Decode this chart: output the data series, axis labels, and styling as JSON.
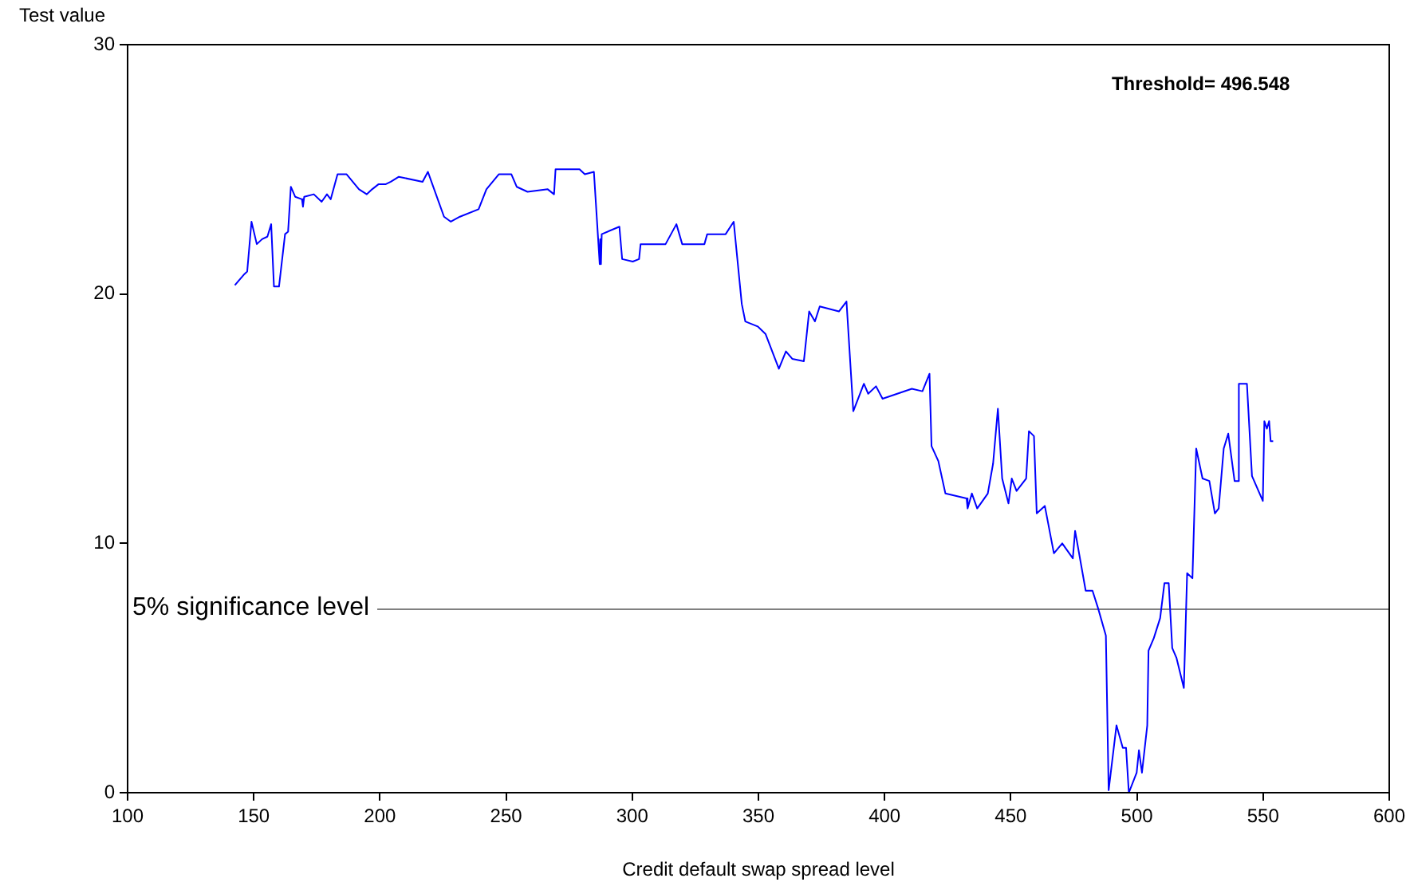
{
  "chart_data": {
    "type": "line",
    "xlabel": "Credit default swap spread level",
    "ylabel": "Test value",
    "xlim": [
      100,
      600
    ],
    "xticks": [
      100,
      150,
      200,
      250,
      300,
      350,
      400,
      450,
      500,
      550,
      600
    ],
    "ylim": [
      0,
      30
    ],
    "yticks": [
      0,
      10,
      20,
      30
    ],
    "grid": false,
    "legend": false,
    "marker": "none",
    "line_style": "solid",
    "annotations": [
      "Threshold= 496.548"
    ],
    "ref_lines": [
      {
        "axis": "y",
        "value": 7.36,
        "label": "5% significance level",
        "color": "#808080"
      }
    ],
    "series": [
      {
        "color": "#0000ff",
        "x": [
          142.5,
          146.3,
          147.4,
          149.1,
          151.2,
          153.3,
          155.4,
          156.9,
          158,
          160,
          162.4,
          163.6,
          164.7,
          166.4,
          169.1,
          169.5,
          170,
          173.8,
          176.9,
          179,
          180.5,
          183.2,
          186.8,
          191.7,
          194.8,
          196.9,
          199.4,
          202.2,
          204.3,
          207.5,
          216.9,
          219,
          225.4,
          228.1,
          231.7,
          239.1,
          242.2,
          247.1,
          252.1,
          254.2,
          258.5,
          266.5,
          269,
          269.6,
          279.1,
          281.2,
          284.8,
          287.1,
          287.3,
          287.6,
          287.9,
          294.9,
          296,
          300.2,
          302.7,
          303.3,
          309.7,
          313.2,
          317.5,
          319.8,
          328.6,
          329.7,
          337,
          340.2,
          343.4,
          344.8,
          349.7,
          352.8,
          358.1,
          360.9,
          363.4,
          368,
          370.1,
          372.4,
          374.3,
          381.9,
          384.9,
          387.6,
          391.8,
          393.5,
          396.6,
          399.2,
          410.8,
          415,
          417.8,
          418.6,
          421.3,
          424.1,
          432.5,
          432.9,
          434.6,
          436.7,
          440.9,
          443,
          444.9,
          446.6,
          449.1,
          450.4,
          452.3,
          456.1,
          457.2,
          459.2,
          460.3,
          463.5,
          467.1,
          470.4,
          474.6,
          475.5,
          479.7,
          482.4,
          484.6,
          487.7,
          488.8,
          491.9,
          494.4,
          495.7,
          496.8,
          499.9,
          500.8,
          502,
          504.1,
          504.6,
          506.7,
          509.2,
          510.9,
          512.6,
          514,
          515.7,
          518.6,
          519.9,
          522,
          523.5,
          526,
          528.7,
          530.9,
          532.4,
          534.4,
          536.2,
          538.7,
          540,
          540.4,
          543.6,
          545.6,
          549.9,
          550.5,
          551.5,
          552.4,
          553,
          554
        ],
        "values": [
          20.35,
          20.8,
          20.9,
          22.9,
          22.0,
          22.2,
          22.3,
          22.8,
          20.3,
          20.3,
          22.4,
          22.5,
          24.3,
          23.9,
          23.8,
          23.5,
          23.9,
          24.0,
          23.7,
          24.0,
          23.8,
          24.8,
          24.8,
          24.2,
          24.0,
          24.2,
          24.4,
          24.4,
          24.5,
          24.7,
          24.5,
          24.9,
          23.1,
          22.9,
          23.1,
          23.4,
          24.2,
          24.8,
          24.8,
          24.3,
          24.1,
          24.2,
          24.0,
          25.0,
          25.0,
          24.8,
          24.9,
          21.2,
          22.2,
          21.2,
          22.4,
          22.7,
          21.4,
          21.3,
          21.4,
          22.0,
          22.0,
          22.0,
          22.8,
          22.0,
          22.0,
          22.4,
          22.4,
          22.9,
          19.6,
          18.9,
          18.7,
          18.4,
          17.0,
          17.7,
          17.4,
          17.3,
          19.3,
          18.9,
          19.5,
          19.3,
          19.7,
          15.3,
          16.4,
          16.0,
          16.3,
          15.8,
          16.2,
          16.1,
          16.8,
          13.9,
          13.3,
          12.0,
          11.8,
          11.4,
          12.0,
          11.4,
          12.0,
          13.2,
          15.4,
          12.6,
          11.6,
          12.6,
          12.1,
          12.6,
          14.5,
          14.3,
          11.2,
          11.5,
          9.6,
          10.0,
          9.4,
          10.5,
          8.1,
          8.1,
          7.4,
          6.3,
          0.1,
          2.7,
          1.8,
          1.8,
          0.0,
          0.8,
          1.7,
          0.8,
          2.7,
          5.7,
          6.2,
          7.0,
          8.4,
          8.4,
          5.8,
          5.4,
          4.2,
          8.8,
          8.6,
          13.8,
          12.6,
          12.5,
          11.2,
          11.4,
          13.8,
          14.4,
          12.5,
          12.5,
          16.4,
          16.4,
          12.7,
          11.7,
          14.9,
          14.6,
          14.9,
          14.1,
          14.1
        ]
      }
    ]
  }
}
